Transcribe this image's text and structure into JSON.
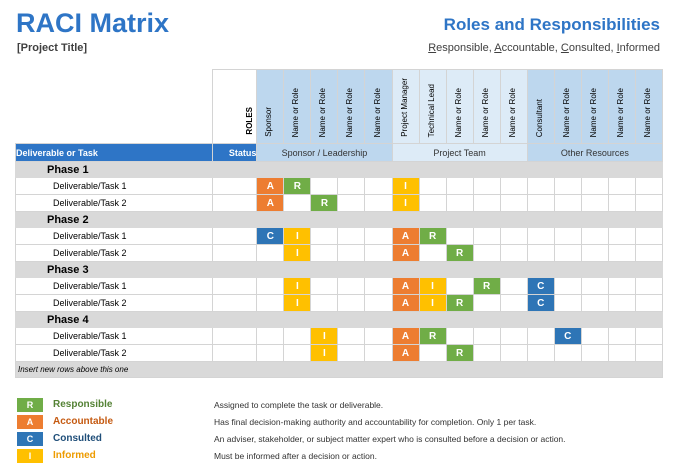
{
  "header": {
    "title": "RACI Matrix",
    "project_title": "[Project Title]",
    "subtitle": "Roles and Responsibilities",
    "rasci": [
      "R",
      "esponsible, ",
      "A",
      "ccountable, ",
      "C",
      "onsulted, ",
      "I",
      "nformed"
    ]
  },
  "table": {
    "roles_label": "ROLES",
    "roles": [
      {
        "label": "Sponsor",
        "group": 0
      },
      {
        "label": "Name or Role",
        "group": 0
      },
      {
        "label": "Name or Role",
        "group": 0
      },
      {
        "label": "Name or Role",
        "group": 0
      },
      {
        "label": "Name or Role",
        "group": 0
      },
      {
        "label": "Project Manager",
        "group": 1
      },
      {
        "label": "Technical Lead",
        "group": 1
      },
      {
        "label": "Name or Role",
        "group": 1
      },
      {
        "label": "Name or Role",
        "group": 1
      },
      {
        "label": "Name or Role",
        "group": 1
      },
      {
        "label": "Consultant",
        "group": 2
      },
      {
        "label": "Name or Role",
        "group": 2
      },
      {
        "label": "Name or Role",
        "group": 2
      },
      {
        "label": "Name or Role",
        "group": 2
      },
      {
        "label": "Name or Role",
        "group": 2
      }
    ],
    "col_task": "Deliverable or Task",
    "col_status": "Status",
    "groups": [
      "Sponsor / Leadership",
      "Project Team",
      "Other Resources"
    ],
    "phases": [
      {
        "name": "Phase 1",
        "tasks": [
          {
            "name": "Deliverable/Task 1",
            "status": "",
            "cells": [
              "A",
              "R",
              "",
              "",
              "",
              "I",
              "",
              "",
              "",
              "",
              "",
              "",
              "",
              "",
              ""
            ]
          },
          {
            "name": "Deliverable/Task 2",
            "status": "",
            "cells": [
              "A",
              "",
              "R",
              "",
              "",
              "I",
              "",
              "",
              "",
              "",
              "",
              "",
              "",
              "",
              ""
            ]
          }
        ]
      },
      {
        "name": "Phase 2",
        "tasks": [
          {
            "name": "Deliverable/Task 1",
            "status": "",
            "cells": [
              "C",
              "I",
              "",
              "",
              "",
              "A",
              "R",
              "",
              "",
              "",
              "",
              "",
              "",
              "",
              ""
            ]
          },
          {
            "name": "Deliverable/Task 2",
            "status": "",
            "cells": [
              "",
              "I",
              "",
              "",
              "",
              "A",
              "",
              "R",
              "",
              "",
              "",
              "",
              "",
              "",
              ""
            ]
          }
        ]
      },
      {
        "name": "Phase 3",
        "tasks": [
          {
            "name": "Deliverable/Task 1",
            "status": "",
            "cells": [
              "",
              "I",
              "",
              "",
              "",
              "A",
              "I",
              "",
              "R",
              "",
              "C",
              "",
              "",
              "",
              ""
            ]
          },
          {
            "name": "Deliverable/Task 2",
            "status": "",
            "cells": [
              "",
              "I",
              "",
              "",
              "",
              "A",
              "I",
              "R",
              "",
              "",
              "C",
              "",
              "",
              "",
              ""
            ]
          }
        ]
      },
      {
        "name": "Phase 4",
        "tasks": [
          {
            "name": "Deliverable/Task 1",
            "status": "",
            "cells": [
              "",
              "",
              "I",
              "",
              "",
              "A",
              "R",
              "",
              "",
              "",
              "",
              "C",
              "",
              "",
              ""
            ]
          },
          {
            "name": "Deliverable/Task 2",
            "status": "",
            "cells": [
              "",
              "",
              "I",
              "",
              "",
              "A",
              "",
              "R",
              "",
              "",
              "",
              "",
              "",
              "",
              ""
            ]
          }
        ]
      }
    ],
    "insert_note": "Insert new rows above this one"
  },
  "legend": [
    {
      "letter": "R",
      "name": "Responsible",
      "desc": "Assigned to complete the task or deliverable.",
      "color": "#70ad47"
    },
    {
      "letter": "A",
      "name": "Accountable",
      "desc": "Has final decision-making authority and accountability for completion. Only 1 per task.",
      "color": "#ed7d31"
    },
    {
      "letter": "C",
      "name": "Consulted",
      "desc": "An adviser, stakeholder, or subject matter expert who is consulted before a decision or action.",
      "color": "#2e75b6"
    },
    {
      "letter": "I",
      "name": "Informed",
      "desc": "Must be informed after a decision or action.",
      "color": "#ffc000"
    }
  ],
  "colors": {
    "accent": "#2e75c6",
    "header_blue": "#2e75c6",
    "group_light": "#bdd7ee",
    "group_lighter": "#ddebf7",
    "phase_gray": "#d9d9d9"
  }
}
